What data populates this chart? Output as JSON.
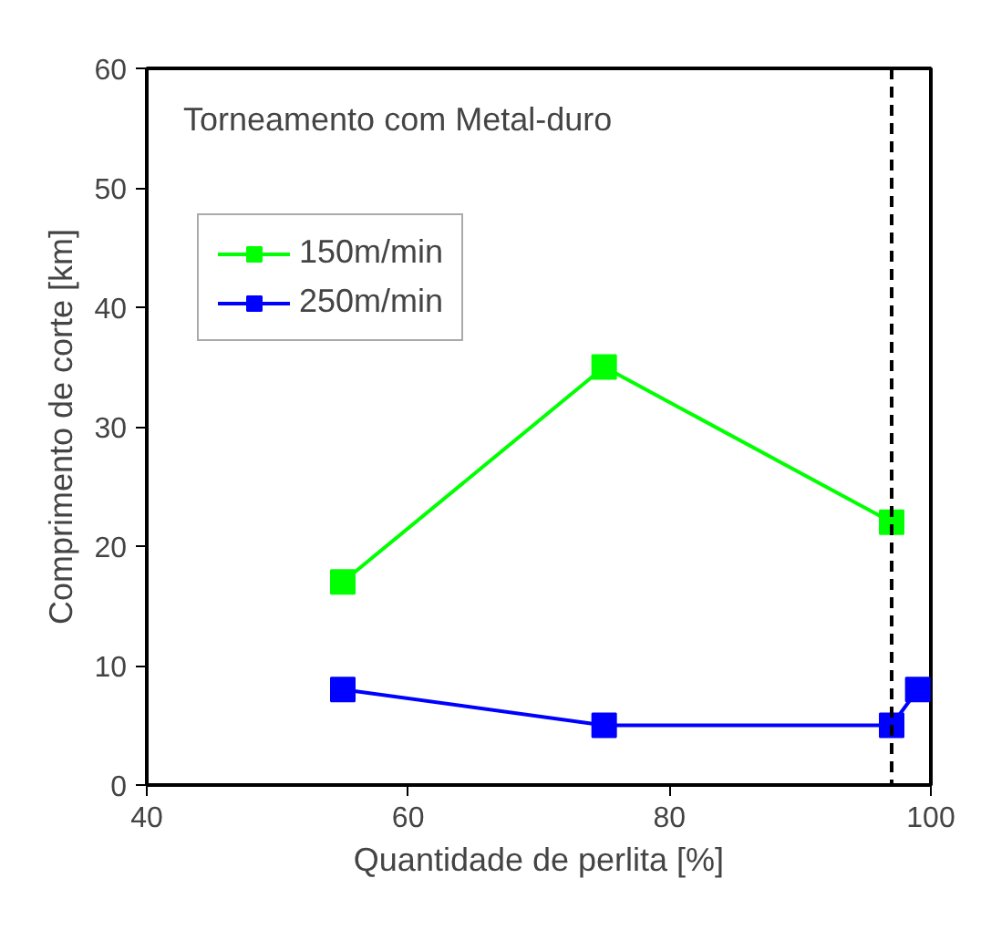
{
  "chart_data": {
    "type": "line",
    "xlabel": "Quantidade de perlita [%]",
    "ylabel": "Comprimento de corte [km]",
    "legend_title": "Torneamento com Metal-duro",
    "series": [
      {
        "name": "150m/min",
        "color": "#00ff00",
        "x": [
          55,
          75,
          97
        ],
        "values": [
          17,
          35,
          22
        ]
      },
      {
        "name": "250m/min",
        "color": "#0000ff",
        "x": [
          55,
          75,
          97,
          99
        ],
        "values": [
          8,
          5,
          5,
          8
        ]
      }
    ],
    "xlim": [
      40,
      100
    ],
    "xticks": [
      40,
      60,
      80,
      100
    ],
    "ylim": [
      0,
      60
    ],
    "yticks": [
      0,
      10,
      20,
      30,
      40,
      50,
      60
    ],
    "ref_lines": [
      {
        "axis": "x",
        "value": 97,
        "color": "#000000",
        "line_style": "dashed"
      }
    ],
    "marker": "square",
    "line_style": "solid",
    "grid": false,
    "legend": "top left"
  }
}
